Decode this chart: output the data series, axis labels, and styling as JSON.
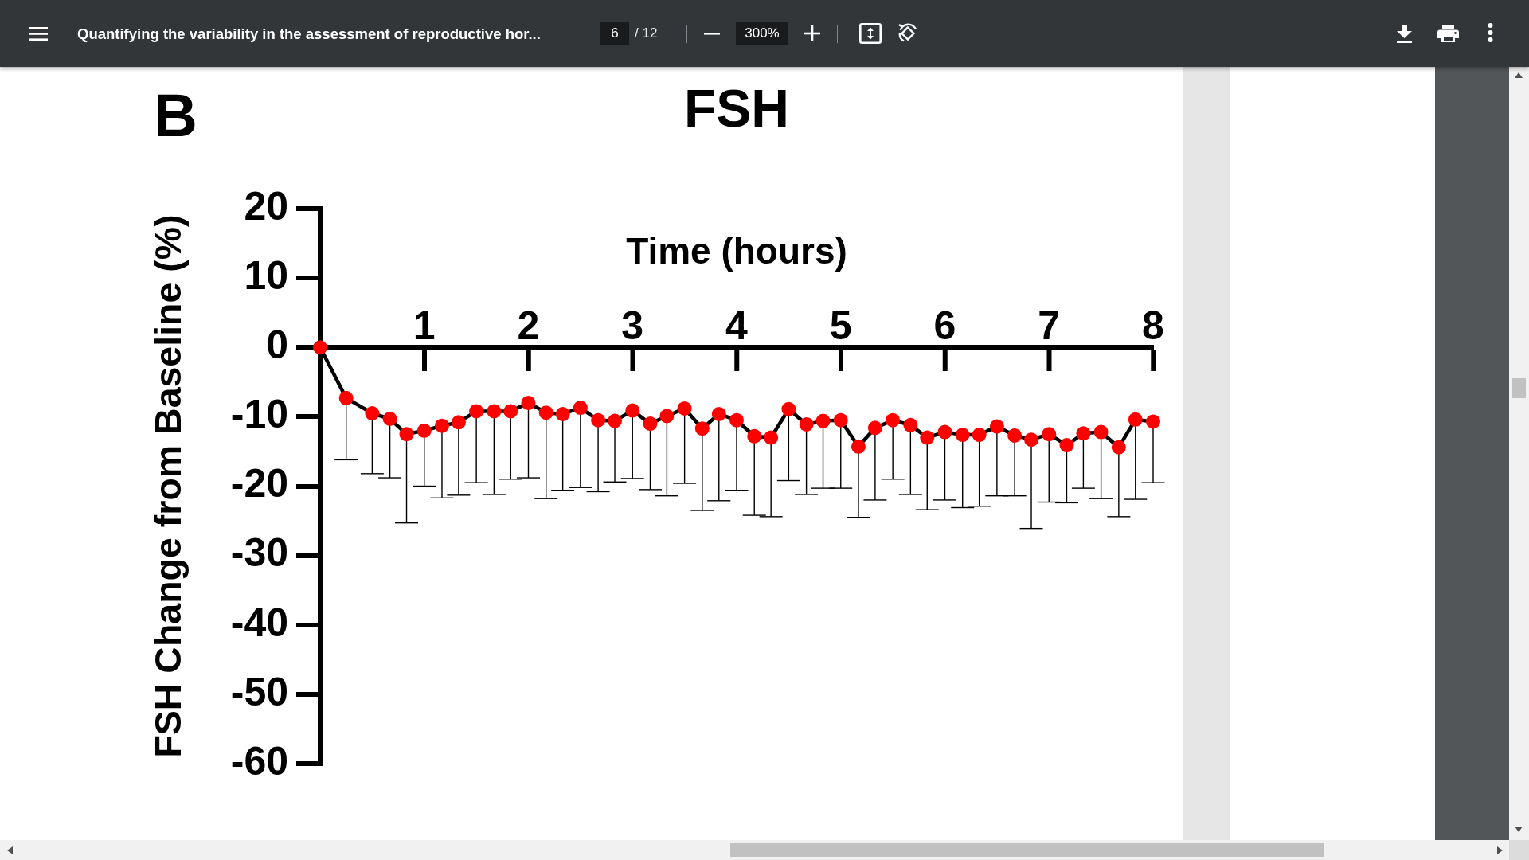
{
  "chart_data": {
    "type": "line",
    "title": "FSH",
    "xlabel": "Time (hours)",
    "ylabel": "FSH Change from Baseline (%)",
    "annotations": [
      "B",
      "Quantifying the variability in the assessment of reproductive hor...",
      "6",
      "/ 12",
      "300%"
    ],
    "x": [
      0,
      0.25,
      0.5,
      0.67,
      0.83,
      1,
      1.17,
      1.33,
      1.5,
      1.67,
      1.83,
      2,
      2.17,
      2.33,
      2.5,
      2.67,
      2.83,
      3,
      3.17,
      3.33,
      3.5,
      3.67,
      3.83,
      4,
      4.17,
      4.33,
      4.5,
      4.67,
      4.83,
      5,
      5.17,
      5.33,
      5.5,
      5.67,
      5.83,
      6,
      6.17,
      6.33,
      6.5,
      6.67,
      6.83,
      7,
      7.17,
      7.33,
      7.5,
      7.67,
      7.83,
      8
    ],
    "values": [
      0,
      -7.3,
      -9.5,
      -10.3,
      -12.5,
      -12,
      -11.3,
      -10.8,
      -9.2,
      -9.2,
      -9.2,
      -8,
      -9.4,
      -9.6,
      -8.7,
      -10.5,
      -10.6,
      -9.1,
      -11,
      -9.9,
      -8.8,
      -11.7,
      -9.6,
      -10.5,
      -12.8,
      -13,
      -8.9,
      -11.1,
      -10.6,
      -10.5,
      -14.3,
      -11.6,
      -10.5,
      -11.2,
      -13,
      -12.2,
      -12.6,
      -12.6,
      -11.4,
      -12.7,
      -13.3,
      -12.5,
      -14.1,
      -12.4,
      -12.2,
      -14.4,
      -10.4,
      -10.7
    ],
    "errors": [
      null,
      [
        -16.2,
        -7.3
      ],
      [
        -18.2,
        -9.5
      ],
      [
        -18.8,
        -10.3
      ],
      [
        -25.3,
        -12.5
      ],
      [
        -20,
        -12
      ],
      [
        -21.7,
        -11.3
      ],
      [
        -21.3,
        -10.8
      ],
      [
        -19.5,
        -9.2
      ],
      [
        -21.2,
        -9.2
      ],
      [
        -19,
        -9.2
      ],
      [
        -18.8,
        -8
      ],
      [
        -21.8,
        -9.4
      ],
      [
        -20.6,
        -9.6
      ],
      [
        -20.2,
        -8.7
      ],
      [
        -20.8,
        -10.5
      ],
      [
        -19.4,
        -10.6
      ],
      [
        -18.9,
        -9.1
      ],
      [
        -20.5,
        -11
      ],
      [
        -21.4,
        -9.9
      ],
      [
        -19.6,
        -8.8
      ],
      [
        -23.5,
        -11.7
      ],
      [
        -22.1,
        -9.6
      ],
      [
        -20.6,
        -10.5
      ],
      [
        -24.2,
        -12.8
      ],
      [
        -24.4,
        -13
      ],
      [
        -19.2,
        -8.9
      ],
      [
        -21.2,
        -11.1
      ],
      [
        -20.3,
        -10.6
      ],
      [
        -20.3,
        -10.5
      ],
      [
        -24.5,
        -14.3
      ],
      [
        -22,
        -11.6
      ],
      [
        -19,
        -10.5
      ],
      [
        -21.2,
        -11.2
      ],
      [
        -23.4,
        -13
      ],
      [
        -22,
        -12.2
      ],
      [
        -23.1,
        -12.6
      ],
      [
        -22.9,
        -12.6
      ],
      [
        -21.4,
        -11.4
      ],
      [
        -21.4,
        -12.7
      ],
      [
        -26.1,
        -13.3
      ],
      [
        -22.3,
        -12.5
      ],
      [
        -22.4,
        -14.1
      ],
      [
        -20.3,
        -12.4
      ],
      [
        -21.8,
        -12.2
      ],
      [
        -24.4,
        -14.4
      ],
      [
        -21.9,
        -10.4
      ],
      [
        -19.5,
        -10.7
      ]
    ],
    "color": "#ff0000",
    "marker": "circle",
    "line_style": "solid",
    "xlim": [
      0,
      8
    ],
    "xticks": [
      1,
      2,
      3,
      4,
      5,
      6,
      7,
      8
    ],
    "ylim": [
      -60,
      20
    ],
    "yticks": [
      20,
      10,
      0,
      -10,
      -20,
      -30,
      -40,
      -50,
      -60
    ]
  }
}
